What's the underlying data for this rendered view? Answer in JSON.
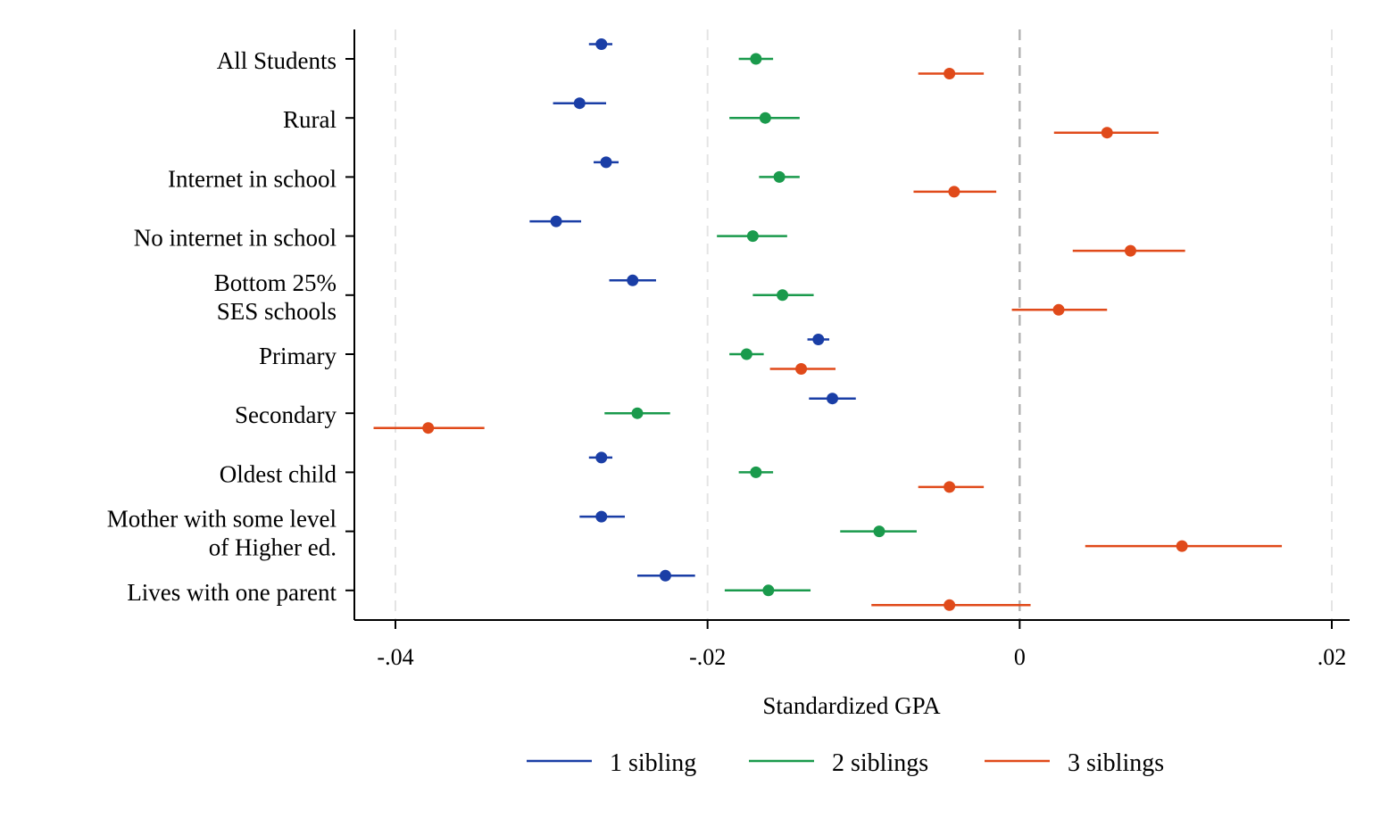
{
  "chart_data": {
    "type": "scatter",
    "orientation": "horizontal",
    "xlabel": "Standardized GPA",
    "xlim": [
      -0.0427,
      0.0212
    ],
    "x_ticks": [
      -0.04,
      -0.02,
      0,
      0.02
    ],
    "x_tick_labels": [
      "-.04",
      "-.02",
      "0",
      ".02"
    ],
    "reference_line": 0,
    "grid": "vertical dashed",
    "legend_position": "bottom",
    "categories": [
      [
        "All Students"
      ],
      [
        "Rural"
      ],
      [
        "Internet in school"
      ],
      [
        "No internet in school"
      ],
      [
        "Bottom 25%",
        "SES schools"
      ],
      [
        "Primary"
      ],
      [
        "Secondary"
      ],
      [
        "Oldest child"
      ],
      [
        "Mother with some level",
        "of Higher ed."
      ],
      [
        "Lives with one parent"
      ]
    ],
    "series": [
      {
        "name": "1 sibling",
        "color": "#1a3ea6",
        "values": [
          -0.0268,
          -0.0282,
          -0.0265,
          -0.0297,
          -0.0248,
          -0.0129,
          -0.012,
          -0.0268,
          -0.0268,
          -0.0227
        ],
        "ci_low": [
          -0.0276,
          -0.0299,
          -0.0273,
          -0.0314,
          -0.0263,
          -0.0136,
          -0.0135,
          -0.0276,
          -0.0282,
          -0.0245
        ],
        "ci_high": [
          -0.0261,
          -0.0265,
          -0.0257,
          -0.0281,
          -0.0233,
          -0.0122,
          -0.0105,
          -0.0261,
          -0.0253,
          -0.0208
        ]
      },
      {
        "name": "2 siblings",
        "color": "#1a9a4c",
        "values": [
          -0.0169,
          -0.0163,
          -0.0154,
          -0.0171,
          -0.0152,
          -0.0175,
          -0.0245,
          -0.0169,
          -0.009,
          -0.0161
        ],
        "ci_low": [
          -0.018,
          -0.0186,
          -0.0167,
          -0.0194,
          -0.0171,
          -0.0186,
          -0.0266,
          -0.018,
          -0.0115,
          -0.0189
        ],
        "ci_high": [
          -0.0158,
          -0.0141,
          -0.0141,
          -0.0149,
          -0.0132,
          -0.0164,
          -0.0224,
          -0.0158,
          -0.0066,
          -0.0134
        ]
      },
      {
        "name": "3 siblings",
        "color": "#e04a1a",
        "values": [
          -0.0045,
          0.0056,
          -0.0042,
          0.0071,
          0.0025,
          -0.014,
          -0.0379,
          -0.0045,
          0.0104,
          -0.0045
        ],
        "ci_low": [
          -0.0065,
          0.0022,
          -0.0068,
          0.0034,
          -0.0005,
          -0.016,
          -0.0414,
          -0.0065,
          0.0042,
          -0.0095
        ],
        "ci_high": [
          -0.0023,
          0.0089,
          -0.0015,
          0.0106,
          0.0056,
          -0.0118,
          -0.0343,
          -0.0023,
          0.0168,
          0.0007
        ]
      }
    ]
  }
}
